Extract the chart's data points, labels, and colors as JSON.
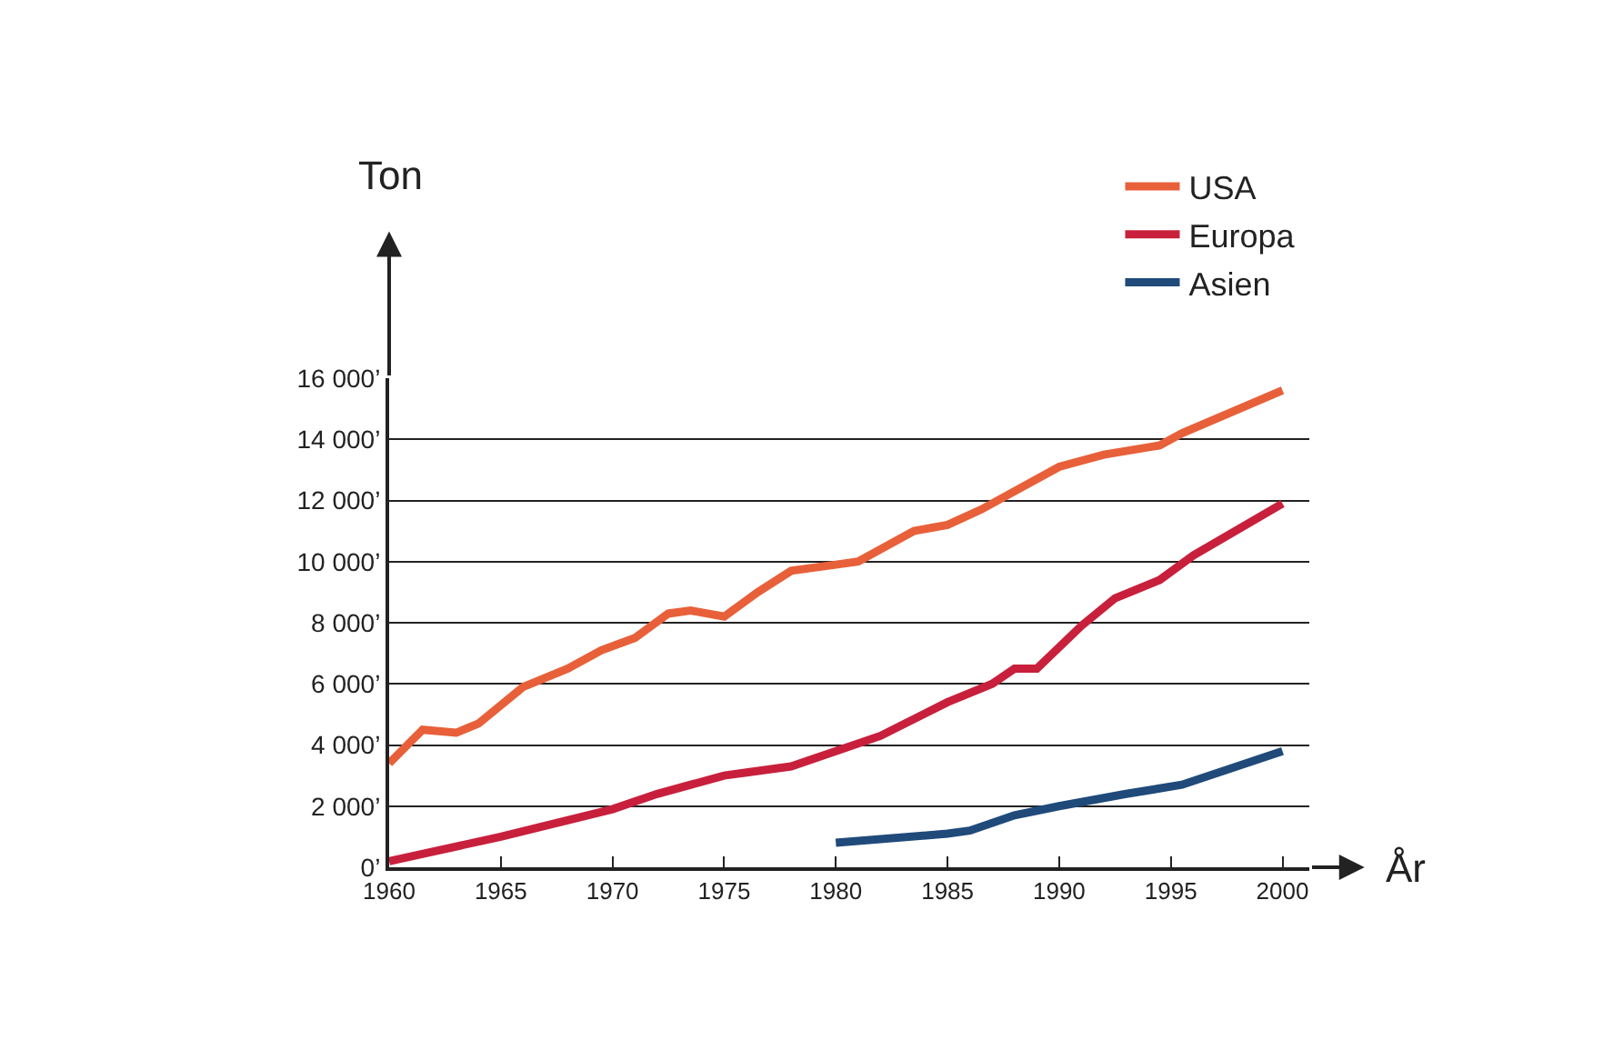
{
  "chart_data": {
    "type": "line",
    "xlabel": "År",
    "ylabel": "Ton",
    "xlim": [
      1960,
      2001.2
    ],
    "xticks": [
      1960,
      1965,
      1970,
      1975,
      1980,
      1985,
      1990,
      1995,
      2000
    ],
    "ylim": [
      0,
      16000
    ],
    "yticks": [
      {
        "value": 0,
        "label": "0’"
      },
      {
        "value": 2000,
        "label": "2 000’"
      },
      {
        "value": 4000,
        "label": "4 000’"
      },
      {
        "value": 6000,
        "label": "6 000’"
      },
      {
        "value": 8000,
        "label": "8 000’"
      },
      {
        "value": 10000,
        "label": "10 000’"
      },
      {
        "value": 12000,
        "label": "12 000’"
      },
      {
        "value": 14000,
        "label": "14 000’"
      },
      {
        "value": 16000,
        "label": "16 000’"
      }
    ],
    "grid": "y",
    "legend": "top right",
    "marker": "none",
    "line_style": "solid",
    "series": [
      {
        "name": "USA",
        "color": "#e8603a",
        "x": [
          1960,
          1961.5,
          1963,
          1964,
          1966,
          1968,
          1969.5,
          1971,
          1972.5,
          1973.5,
          1975,
          1976.5,
          1978,
          1980,
          1981,
          1983.5,
          1985,
          1986.5,
          1988,
          1990,
          1992,
          1994.5,
          1995.5,
          2000
        ],
        "values": [
          3400,
          4500,
          4400,
          4700,
          5900,
          6500,
          7100,
          7500,
          8300,
          8400,
          8200,
          9000,
          9700,
          9900,
          10000,
          11000,
          11200,
          11700,
          12300,
          13100,
          13500,
          13800,
          14200,
          15600
        ]
      },
      {
        "name": "Europa",
        "color": "#c8203c",
        "x": [
          1960,
          1965,
          1970,
          1972,
          1975,
          1976,
          1978,
          1980,
          1982,
          1985,
          1987,
          1988,
          1989,
          1991,
          1992.5,
          1994.5,
          1996,
          2000
        ],
        "values": [
          200,
          1000,
          1900,
          2400,
          3000,
          3100,
          3300,
          3800,
          4300,
          5400,
          6000,
          6500,
          6500,
          7900,
          8800,
          9400,
          10200,
          11900
        ]
      },
      {
        "name": "Asien",
        "color": "#1f4a7a",
        "x": [
          1980,
          1985,
          1986,
          1988,
          1990,
          1993,
          1995.5,
          2000
        ],
        "values": [
          800,
          1100,
          1200,
          1700,
          2000,
          2400,
          2700,
          3800
        ]
      }
    ]
  }
}
